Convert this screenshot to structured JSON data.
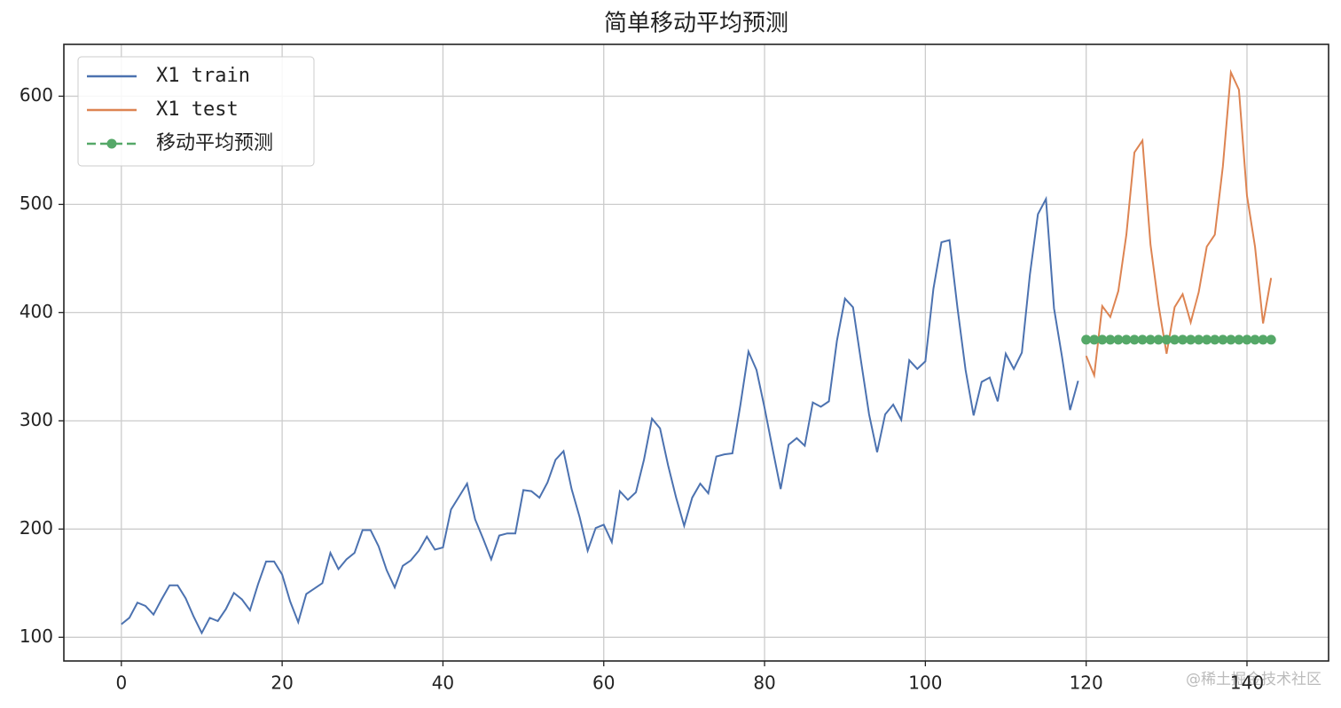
{
  "chart_data": {
    "type": "line",
    "title": "简单移动平均预测",
    "series": [
      {
        "name": "X1 train",
        "color": "#4c72b0",
        "marker": false,
        "x": [
          0,
          1,
          2,
          3,
          4,
          5,
          6,
          7,
          8,
          9,
          10,
          11,
          12,
          13,
          14,
          15,
          16,
          17,
          18,
          19,
          20,
          21,
          22,
          23,
          24,
          25,
          26,
          27,
          28,
          29,
          30,
          31,
          32,
          33,
          34,
          35,
          36,
          37,
          38,
          39,
          40,
          41,
          42,
          43,
          44,
          45,
          46,
          47,
          48,
          49,
          50,
          51,
          52,
          53,
          54,
          55,
          56,
          57,
          58,
          59,
          60,
          61,
          62,
          63,
          64,
          65,
          66,
          67,
          68,
          69,
          70,
          71,
          72,
          73,
          74,
          75,
          76,
          77,
          78,
          79,
          80,
          81,
          82,
          83,
          84,
          85,
          86,
          87,
          88,
          89,
          90,
          91,
          92,
          93,
          94,
          95,
          96,
          97,
          98,
          99,
          100,
          101,
          102,
          103,
          104,
          105,
          106,
          107,
          108,
          109,
          110,
          111,
          112,
          113,
          114,
          115,
          116,
          117,
          118,
          119
        ],
        "values": [
          112,
          118,
          132,
          129,
          121,
          135,
          148,
          148,
          136,
          119,
          104,
          118,
          115,
          126,
          141,
          135,
          125,
          149,
          170,
          170,
          158,
          133,
          114,
          140,
          145,
          150,
          178,
          163,
          172,
          178,
          199,
          199,
          184,
          162,
          146,
          166,
          171,
          180,
          193,
          181,
          183,
          218,
          230,
          242,
          209,
          191,
          172,
          194,
          196,
          196,
          236,
          235,
          229,
          243,
          264,
          272,
          237,
          211,
          180,
          201,
          204,
          188,
          235,
          227,
          234,
          264,
          302,
          293,
          259,
          229,
          203,
          229,
          242,
          233,
          267,
          269,
          270,
          315,
          364,
          347,
          312,
          274,
          237,
          278,
          284,
          277,
          317,
          313,
          318,
          374,
          413,
          405,
          355,
          306,
          271,
          306,
          315,
          301,
          356,
          348,
          355,
          422,
          465,
          467,
          404,
          347,
          305,
          336,
          340,
          318,
          362,
          348,
          363,
          435,
          491,
          505,
          404,
          359,
          310,
          337
        ]
      },
      {
        "name": "X1 test",
        "color": "#dd8452",
        "marker": false,
        "x": [
          120,
          121,
          122,
          123,
          124,
          125,
          126,
          127,
          128,
          129,
          130,
          131,
          132,
          133,
          134,
          135,
          136,
          137,
          138,
          139,
          140,
          141,
          142,
          143
        ],
        "values": [
          360,
          342,
          406,
          396,
          420,
          472,
          548,
          559,
          463,
          407,
          362,
          405,
          417,
          391,
          419,
          461,
          472,
          535,
          622,
          606,
          508,
          461,
          390,
          432
        ]
      },
      {
        "name": "移动平均预测",
        "color": "#55a868",
        "marker": true,
        "dashed": true,
        "x": [
          120,
          121,
          122,
          123,
          124,
          125,
          126,
          127,
          128,
          129,
          130,
          131,
          132,
          133,
          134,
          135,
          136,
          137,
          138,
          139,
          140,
          141,
          142,
          143
        ],
        "values": [
          375,
          375,
          375,
          375,
          375,
          375,
          375,
          375,
          375,
          375,
          375,
          375,
          375,
          375,
          375,
          375,
          375,
          375,
          375,
          375,
          375,
          375,
          375,
          375
        ]
      }
    ],
    "xlim": [
      -7.15,
      150.15
    ],
    "ylim": [
      78.1,
      647.9
    ],
    "xticks": [
      0,
      20,
      40,
      60,
      80,
      100,
      120,
      140
    ],
    "yticks": [
      100,
      200,
      300,
      400,
      500,
      600
    ],
    "grid": true,
    "legend": "upper left",
    "watermark": "@稀土掘金技术社区"
  }
}
